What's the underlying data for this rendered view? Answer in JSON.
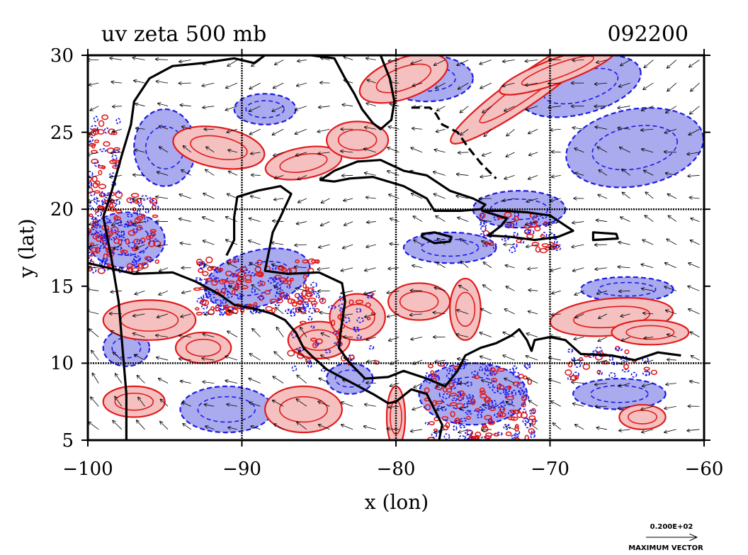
{
  "chart_data": {
    "type": "contour-map",
    "title": "uv zeta 500 mb",
    "time_label": "092200",
    "xlabel": "x (lon)",
    "ylabel": "y (lat)",
    "xlim": [
      -100,
      -60
    ],
    "ylim": [
      5,
      30
    ],
    "x_ticks": [
      -100,
      -90,
      -80,
      -70,
      -60
    ],
    "y_ticks": [
      5,
      10,
      15,
      20,
      25,
      30
    ],
    "x_tick_labels": [
      "−100",
      "−90",
      "−80",
      "−70",
      "−60"
    ],
    "y_tick_labels": [
      "5",
      "10",
      "15",
      "20",
      "25",
      "30"
    ],
    "grid_lon": [
      -90,
      -80,
      -70
    ],
    "grid_lat": [
      10,
      20
    ],
    "variables": [
      "horizontal wind vectors (u, v)",
      "relative vorticity (zeta)"
    ],
    "pressure_level": "500 mb",
    "vector_legend": {
      "value": "0.200E+02",
      "caption": "MAXIMUM VECTOR"
    },
    "positive_regions": [
      {
        "center": [
          -79.5,
          28.5
        ],
        "rx": 3.0,
        "ry": 1.3,
        "rot": -20
      },
      {
        "center": [
          -71.5,
          27.8
        ],
        "rx": 6.0,
        "ry": 1.0,
        "rot": -35
      },
      {
        "center": [
          -69.5,
          29.0
        ],
        "rx": 4.0,
        "ry": 0.8,
        "rot": -20
      },
      {
        "center": [
          -91.5,
          24.0
        ],
        "rx": 3.0,
        "ry": 1.3,
        "rot": 10
      },
      {
        "center": [
          -86.0,
          23.0
        ],
        "rx": 2.5,
        "ry": 1.0,
        "rot": -10
      },
      {
        "center": [
          -82.5,
          24.5
        ],
        "rx": 2.0,
        "ry": 1.2,
        "rot": 0
      },
      {
        "center": [
          -96.0,
          12.8
        ],
        "rx": 3.0,
        "ry": 1.3,
        "rot": 0
      },
      {
        "center": [
          -92.5,
          11.0
        ],
        "rx": 1.8,
        "ry": 1.0,
        "rot": 0
      },
      {
        "center": [
          -85.0,
          11.5
        ],
        "rx": 2.0,
        "ry": 1.2,
        "rot": 0
      },
      {
        "center": [
          -82.5,
          13.0
        ],
        "rx": 1.8,
        "ry": 1.5,
        "rot": 0
      },
      {
        "center": [
          -78.5,
          14.0
        ],
        "rx": 2.0,
        "ry": 1.2,
        "rot": 0
      },
      {
        "center": [
          -75.5,
          13.5
        ],
        "rx": 1.0,
        "ry": 2.0,
        "rot": 0
      },
      {
        "center": [
          -66.0,
          13.0
        ],
        "rx": 4.0,
        "ry": 1.2,
        "rot": -5
      },
      {
        "center": [
          -63.5,
          12.0
        ],
        "rx": 2.5,
        "ry": 0.8,
        "rot": 0
      },
      {
        "center": [
          -86.0,
          7.0
        ],
        "rx": 2.5,
        "ry": 1.5,
        "rot": 0
      },
      {
        "center": [
          -80.0,
          6.5
        ],
        "rx": 0.6,
        "ry": 2.0,
        "rot": 0
      },
      {
        "center": [
          -97.0,
          7.5
        ],
        "rx": 2.0,
        "ry": 1.0,
        "rot": 0
      },
      {
        "center": [
          -64.0,
          6.5
        ],
        "rx": 1.5,
        "ry": 0.8,
        "rot": 0
      }
    ],
    "negative_regions": [
      {
        "center": [
          -78.0,
          28.5
        ],
        "rx": 3.0,
        "ry": 1.5,
        "rot": 0
      },
      {
        "center": [
          -68.0,
          28.0
        ],
        "rx": 4.0,
        "ry": 1.8,
        "rot": -15
      },
      {
        "center": [
          -64.5,
          24.0
        ],
        "rx": 4.5,
        "ry": 2.5,
        "rot": -10
      },
      {
        "center": [
          -95.0,
          24.0
        ],
        "rx": 2.0,
        "ry": 2.5,
        "rot": 0
      },
      {
        "center": [
          -88.5,
          26.5
        ],
        "rx": 2.0,
        "ry": 1.0,
        "rot": 0
      },
      {
        "center": [
          -97.5,
          18.0
        ],
        "rx": 2.5,
        "ry": 1.8,
        "rot": 0
      },
      {
        "center": [
          -89.0,
          15.5
        ],
        "rx": 3.5,
        "ry": 1.8,
        "rot": -15
      },
      {
        "center": [
          -76.5,
          17.5
        ],
        "rx": 3.0,
        "ry": 1.0,
        "rot": 0
      },
      {
        "center": [
          -72.0,
          20.0
        ],
        "rx": 3.0,
        "ry": 1.2,
        "rot": 0
      },
      {
        "center": [
          -65.0,
          14.8
        ],
        "rx": 3.0,
        "ry": 0.8,
        "rot": 0
      },
      {
        "center": [
          -75.0,
          8.0
        ],
        "rx": 3.5,
        "ry": 2.0,
        "rot": 0
      },
      {
        "center": [
          -91.0,
          7.0
        ],
        "rx": 3.0,
        "ry": 1.5,
        "rot": 0
      },
      {
        "center": [
          -97.5,
          11.0
        ],
        "rx": 1.5,
        "ry": 1.2,
        "rot": 0
      },
      {
        "center": [
          -83.0,
          9.0
        ],
        "rx": 1.5,
        "ry": 1.0,
        "rot": 0
      },
      {
        "center": [
          -65.5,
          8.0
        ],
        "rx": 3.0,
        "ry": 1.0,
        "rot": 0
      }
    ],
    "coastlines": [
      {
        "name": "gulf-coast",
        "points": [
          [
            -97.5,
            5.0
          ],
          [
            -97.5,
            8.0
          ],
          [
            -98.0,
            14.0
          ],
          [
            -98.5,
            17.0
          ],
          [
            -99.0,
            19.5
          ],
          [
            -98.5,
            21.0
          ],
          [
            -97.8,
            23.5
          ],
          [
            -97.2,
            25.5
          ],
          [
            -97.0,
            27.0
          ],
          [
            -96.0,
            28.5
          ],
          [
            -94.5,
            29.3
          ],
          [
            -92.5,
            29.5
          ],
          [
            -90.5,
            29.8
          ],
          [
            -89.2,
            29.5
          ],
          [
            -88.5,
            30.0
          ],
          [
            -85.5,
            30.0
          ],
          [
            -84.0,
            29.8
          ],
          [
            -83.3,
            28.5
          ],
          [
            -82.7,
            27.5
          ],
          [
            -82.2,
            26.5
          ],
          [
            -81.5,
            25.6
          ],
          [
            -81.0,
            25.2
          ],
          [
            -80.3,
            25.8
          ],
          [
            -80.1,
            27.0
          ],
          [
            -80.4,
            28.5
          ],
          [
            -81.0,
            30.0
          ]
        ]
      },
      {
        "name": "yucatan-central-america",
        "points": [
          [
            -100.0,
            16.5
          ],
          [
            -97.0,
            15.8
          ],
          [
            -94.5,
            15.9
          ],
          [
            -93.0,
            15.3
          ],
          [
            -91.5,
            14.5
          ],
          [
            -90.5,
            13.8
          ],
          [
            -89.0,
            13.5
          ],
          [
            -88.0,
            13.2
          ],
          [
            -87.2,
            12.8
          ],
          [
            -86.5,
            12.0
          ],
          [
            -86.0,
            11.0
          ],
          [
            -85.5,
            10.5
          ],
          [
            -84.5,
            9.6
          ],
          [
            -83.0,
            8.8
          ],
          [
            -81.5,
            8.0
          ],
          [
            -80.5,
            7.4
          ],
          [
            -80.0,
            7.5
          ],
          [
            -79.0,
            8.3
          ],
          [
            -78.0,
            8.0
          ],
          [
            -77.5,
            7.0
          ],
          [
            -77.0,
            6.0
          ],
          [
            -77.2,
            5.0
          ]
        ]
      },
      {
        "name": "caribbean-side",
        "points": [
          [
            -91.0,
            17.0
          ],
          [
            -90.5,
            18.0
          ],
          [
            -90.5,
            19.5
          ],
          [
            -90.3,
            20.8
          ],
          [
            -89.0,
            21.2
          ],
          [
            -87.5,
            21.5
          ],
          [
            -86.8,
            21.0
          ],
          [
            -87.5,
            19.5
          ],
          [
            -88.0,
            18.5
          ],
          [
            -88.3,
            17.0
          ],
          [
            -88.5,
            16.0
          ],
          [
            -87.0,
            15.8
          ],
          [
            -85.0,
            15.9
          ],
          [
            -83.5,
            15.2
          ],
          [
            -83.3,
            14.0
          ],
          [
            -83.6,
            12.0
          ],
          [
            -83.7,
            11.0
          ],
          [
            -83.0,
            10.0
          ],
          [
            -82.0,
            9.0
          ],
          [
            -80.5,
            9.1
          ],
          [
            -79.5,
            9.5
          ],
          [
            -78.0,
            9.0
          ],
          [
            -76.8,
            8.5
          ],
          [
            -76.0,
            9.5
          ],
          [
            -75.5,
            10.5
          ],
          [
            -74.5,
            11.0
          ],
          [
            -73.5,
            11.3
          ],
          [
            -72.5,
            11.8
          ],
          [
            -72.0,
            12.2
          ],
          [
            -71.5,
            11.5
          ],
          [
            -71.2,
            10.8
          ],
          [
            -71.0,
            11.5
          ],
          [
            -70.0,
            11.7
          ],
          [
            -69.0,
            11.5
          ],
          [
            -68.0,
            10.6
          ],
          [
            -66.0,
            10.5
          ],
          [
            -64.5,
            10.2
          ],
          [
            -63.0,
            10.7
          ],
          [
            -61.5,
            10.5
          ]
        ]
      },
      {
        "name": "cuba",
        "closed": true,
        "points": [
          [
            -84.9,
            21.9
          ],
          [
            -84.0,
            22.5
          ],
          [
            -82.5,
            23.1
          ],
          [
            -81.0,
            23.2
          ],
          [
            -79.5,
            22.5
          ],
          [
            -78.0,
            22.2
          ],
          [
            -76.5,
            21.2
          ],
          [
            -75.0,
            20.7
          ],
          [
            -74.2,
            20.3
          ],
          [
            -74.5,
            20.0
          ],
          [
            -75.8,
            19.9
          ],
          [
            -77.5,
            19.9
          ],
          [
            -78.0,
            20.7
          ],
          [
            -79.5,
            21.5
          ],
          [
            -81.5,
            22.1
          ],
          [
            -83.0,
            22.0
          ],
          [
            -84.0,
            21.8
          ]
        ]
      },
      {
        "name": "hispaniola",
        "closed": true,
        "points": [
          [
            -74.4,
            19.9
          ],
          [
            -73.0,
            19.9
          ],
          [
            -71.5,
            19.8
          ],
          [
            -70.0,
            19.6
          ],
          [
            -68.5,
            18.6
          ],
          [
            -69.5,
            18.2
          ],
          [
            -71.0,
            18.0
          ],
          [
            -72.5,
            18.2
          ],
          [
            -74.0,
            18.3
          ],
          [
            -73.2,
            18.9
          ],
          [
            -72.8,
            19.4
          ]
        ]
      },
      {
        "name": "jamaica",
        "closed": true,
        "points": [
          [
            -78.3,
            18.4
          ],
          [
            -77.5,
            18.5
          ],
          [
            -76.4,
            18.2
          ],
          [
            -76.5,
            17.9
          ],
          [
            -77.5,
            17.8
          ],
          [
            -78.3,
            18.2
          ]
        ]
      },
      {
        "name": "puerto-rico",
        "closed": true,
        "points": [
          [
            -67.2,
            18.5
          ],
          [
            -65.7,
            18.4
          ],
          [
            -65.6,
            18.1
          ],
          [
            -67.2,
            18.0
          ]
        ]
      },
      {
        "name": "bahamas",
        "points": [
          [
            -79.0,
            26.6
          ],
          [
            -77.8,
            26.6
          ],
          [
            -77.4,
            26.2
          ],
          [
            -77.0,
            25.5
          ],
          [
            -76.0,
            25.0
          ],
          [
            -75.3,
            24.0
          ],
          [
            -74.5,
            23.0
          ],
          [
            -73.5,
            22.0
          ]
        ]
      }
    ],
    "wind_field": {
      "lon_step": 1.5,
      "lat_step": 1.5,
      "description": "predominantly easterly trade-wind flow with cyclonic/anticyclonic perturbations"
    }
  }
}
